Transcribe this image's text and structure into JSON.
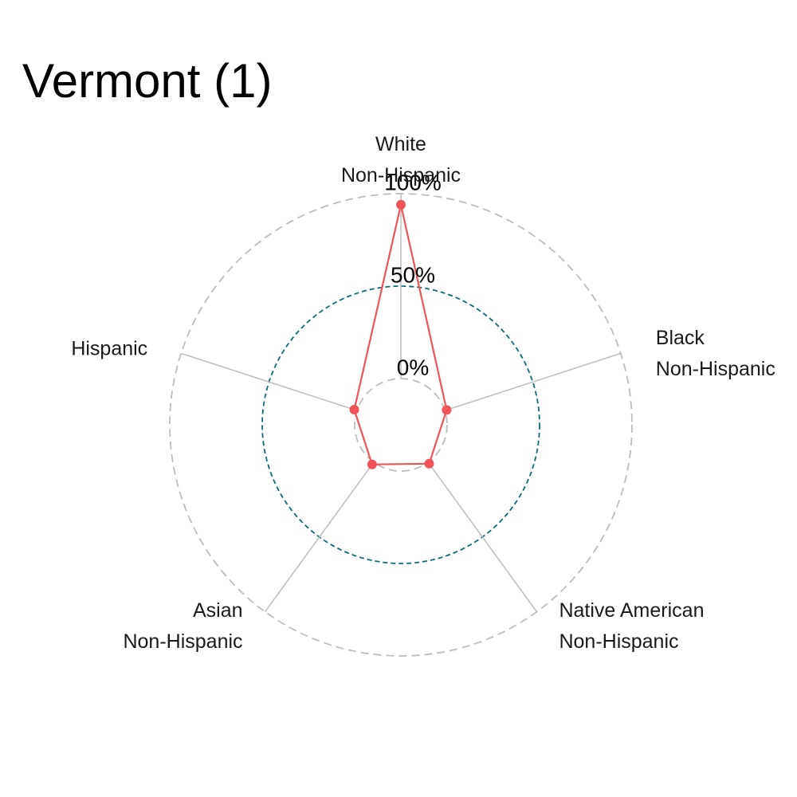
{
  "chart_data": {
    "type": "radar",
    "title": "Vermont (1)",
    "axes": [
      {
        "key": "white",
        "label_lines": [
          "White",
          "Non-Hispanic"
        ]
      },
      {
        "key": "black",
        "label_lines": [
          "Black",
          "Non-Hispanic"
        ]
      },
      {
        "key": "native",
        "label_lines": [
          "Native American",
          "Non-Hispanic"
        ]
      },
      {
        "key": "asian",
        "label_lines": [
          "Asian",
          "Non-Hispanic"
        ]
      },
      {
        "key": "hispanic",
        "label_lines": [
          "Hispanic"
        ]
      }
    ],
    "grid_labels": [
      "0%",
      "50%",
      "100%"
    ],
    "grid_values": [
      0,
      50,
      100
    ],
    "range": [
      -25,
      100
    ],
    "series": [
      {
        "values": [
          94,
          1,
          1,
          1.5,
          1.5
        ],
        "color": "#f0535a"
      }
    ],
    "colors": {
      "series": "#f0535a",
      "mid_grid": "#0e6b7a",
      "outer_grid": "#bdbdbd",
      "spokes": "#bdbdbd"
    }
  }
}
